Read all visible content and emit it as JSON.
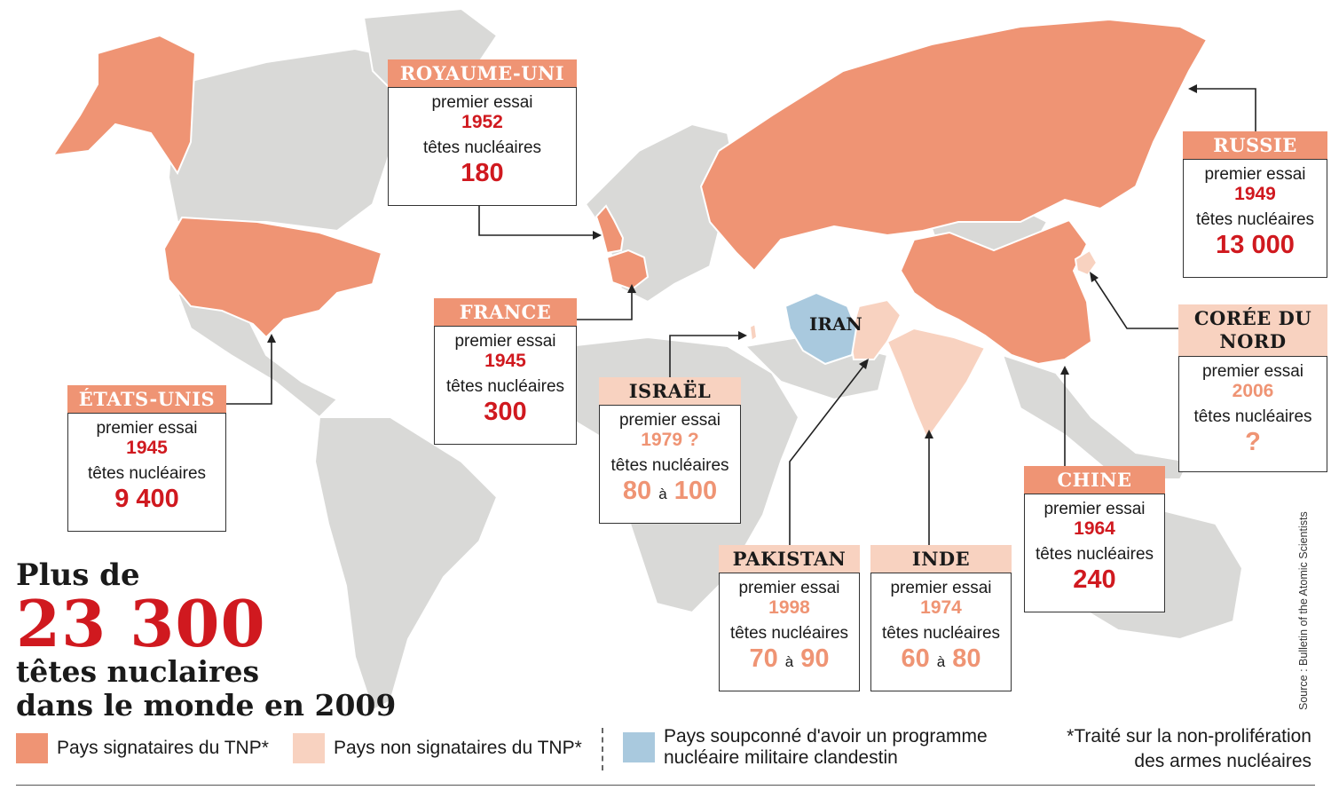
{
  "colors": {
    "tnp": "#ef9474",
    "non_tnp": "#f8d2c0",
    "suspected": "#a9c9de",
    "land": "#d9d9d7",
    "accent_red": "#d0191f"
  },
  "headline": {
    "line1": "Plus de",
    "number": "23 300",
    "line3": "têtes nuclaires",
    "line4": "dans le monde en 2009"
  },
  "labels": {
    "first_test": "premier essai",
    "warheads": "têtes nucléaires",
    "range_sep": "à"
  },
  "countries": {
    "royaume_uni": {
      "name": "ROYAUME-UNI",
      "first_test": "1952",
      "warheads": "180",
      "status": "tnp"
    },
    "russie": {
      "name": "RUSSIE",
      "first_test": "1949",
      "warheads": "13 000",
      "status": "tnp"
    },
    "france": {
      "name": "FRANCE",
      "first_test": "1945",
      "warheads": "300",
      "status": "tnp"
    },
    "etats_unis": {
      "name": "ÉTATS-UNIS",
      "first_test": "1945",
      "warheads": "9 400",
      "status": "tnp"
    },
    "israel": {
      "name": "ISRAËL",
      "first_test": "1979 ?",
      "warheads_min": "80",
      "warheads_max": "100",
      "status": "non_tnp"
    },
    "coree_du_nord": {
      "name": "CORÉE DU NORD",
      "first_test": "2006",
      "warheads": "?",
      "status": "non_tnp"
    },
    "chine": {
      "name": "CHINE",
      "first_test": "1964",
      "warheads": "240",
      "status": "tnp"
    },
    "pakistan": {
      "name": "PAKISTAN",
      "first_test": "1998",
      "warheads_min": "70",
      "warheads_max": "90",
      "status": "non_tnp"
    },
    "inde": {
      "name": "INDE",
      "first_test": "1974",
      "warheads_min": "60",
      "warheads_max": "80",
      "status": "non_tnp"
    }
  },
  "map_labels": {
    "iran": "IRAN"
  },
  "legend": {
    "tnp": "Pays signataires du TNP*",
    "non_tnp": "Pays non signataires du TNP*",
    "suspected": "Pays soupconné d'avoir un programme nucléaire militaire clandestin"
  },
  "footnote": "*Traité sur la non-prolifération des armes nucléaires",
  "source": "Source : Bulletin of the Atomic Scientists"
}
